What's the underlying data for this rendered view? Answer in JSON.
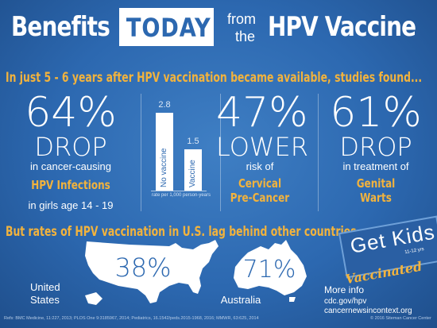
{
  "title": {
    "benefits": "Benefits",
    "today": "TODAY",
    "from": "from",
    "the": "the",
    "hpv_vaccine": "HPV Vaccine"
  },
  "subtitle": "In just 5 - 6 years after  HPV vaccination became available, studies found...",
  "stat1": {
    "value": "64%",
    "word": "DROP",
    "line1": "in cancer-causing",
    "highlight": "HPV Infections",
    "line2": "in girls age 14 - 19"
  },
  "chart_data": {
    "type": "bar",
    "categories": [
      "No vaccine",
      "Vaccine"
    ],
    "values": [
      2.8,
      1.5
    ],
    "value_labels": [
      "2.8",
      "1.5"
    ],
    "xlabel": "rate per 1,000 person-years",
    "ylim": [
      0,
      2.8
    ]
  },
  "stat2": {
    "value": "47%",
    "word": "LOWER",
    "line1": "risk of",
    "highlight1": "Cervical",
    "highlight2": "Pre-Cancer"
  },
  "stat3": {
    "value": "61%",
    "word": "DROP",
    "line1": "in treatment of",
    "highlight1": "Genital",
    "highlight2": "Warts"
  },
  "banner2": "But rates of HPV vaccination in U.S. lag behind other countries",
  "us": {
    "percent": "38%",
    "label1": "United",
    "label2": "States"
  },
  "australia": {
    "percent": "71%",
    "label": "Australia"
  },
  "getkids": {
    "title": "Get Kids",
    "age": "11-12 yrs",
    "vaccinated": "Vaccinated"
  },
  "moreinfo": {
    "heading": "More info",
    "link1": "cdc.gov/hpv",
    "link2": "cancernewsincontext.org"
  },
  "footer": {
    "refs": "Refs: BMC Medicine, 11:227, 2013; PLOS One 9:3185967, 2014; Pediatrics, 16.1542/peds.2015-1968, 2016; MMWR, 63:625, 2014",
    "copyright": "© 2016 Siteman Cancer Center"
  },
  "colors": {
    "background": "#2c68b0",
    "accent": "#f2b33d",
    "text": "#ffffff"
  }
}
